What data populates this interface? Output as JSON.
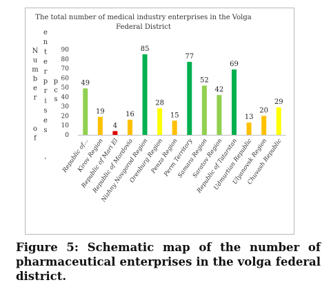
{
  "chart_data": {
    "type": "bar",
    "title": "The total number of medical industry enterprises in the Volga Federal District",
    "ylabel_vertical": [
      "Number of enterprises",
      "pcs"
    ],
    "ylim": [
      0,
      90
    ],
    "yticks": [
      0,
      10,
      20,
      30,
      40,
      50,
      60,
      70,
      80,
      90
    ],
    "grid": false,
    "categories": [
      "Republic of...",
      "Kirov Region",
      "Republic of Mari El",
      "Republic of Mordovia",
      "Nizhny Novgorod Region",
      "Orenburg Region",
      "Penza Region",
      "Perm Territory",
      "Samara Region",
      "Saratov Region",
      "Republic of Tatarstan",
      "Udmurtian Republic",
      "Ulyanovsk Region",
      "Chuvash Republic"
    ],
    "values": [
      49,
      19,
      4,
      16,
      85,
      28,
      15,
      77,
      52,
      42,
      69,
      13,
      20,
      29
    ],
    "colors": [
      "#92d050",
      "#ffc000",
      "#e00000",
      "#ffc000",
      "#00b050",
      "#ffff00",
      "#ffc000",
      "#00b050",
      "#92d050",
      "#92d050",
      "#00b050",
      "#ffc000",
      "#ffc000",
      "#ffff00"
    ]
  },
  "caption": "Figure 5: Schematic map of the number of pharmaceutical enterprises in the volga federal district."
}
